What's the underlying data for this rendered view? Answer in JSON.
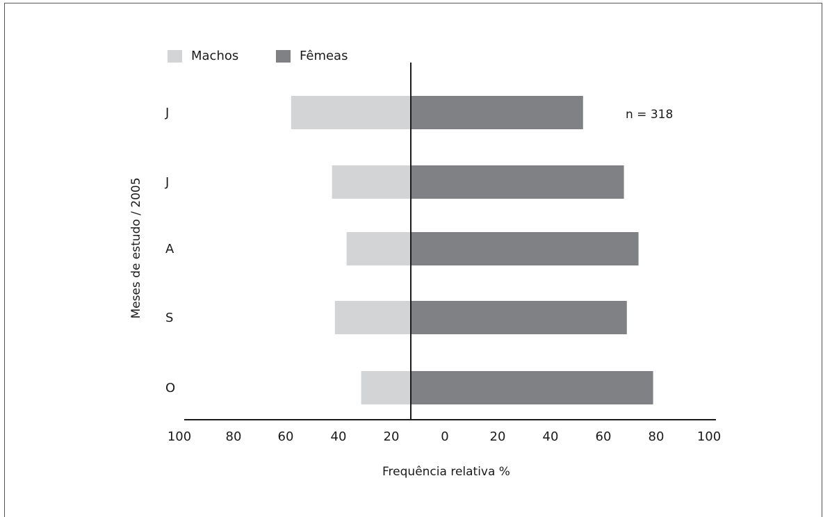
{
  "chart_data": {
    "type": "bar",
    "orientation": "horizontal-diverging",
    "categories": [
      "J",
      "J",
      "A",
      "S",
      "O"
    ],
    "series": [
      {
        "name": "Machos",
        "values": [
          41,
          27,
          22,
          26,
          17
        ],
        "color": "#d3d4d5"
      },
      {
        "name": "Fêmeas",
        "values": [
          59,
          73,
          78,
          74,
          83
        ],
        "color": "#808184"
      }
    ],
    "xlabel": "Frequência relativa %",
    "ylabel": "Meses de estudo / 2005",
    "annotation": "n = 318",
    "x_tick_labels": [
      "100",
      "80",
      "60",
      "40",
      "20",
      "0",
      "20",
      "40",
      "60",
      "80",
      "100"
    ],
    "xlim": [
      0,
      100
    ],
    "grid": false,
    "legend": "top-left"
  }
}
